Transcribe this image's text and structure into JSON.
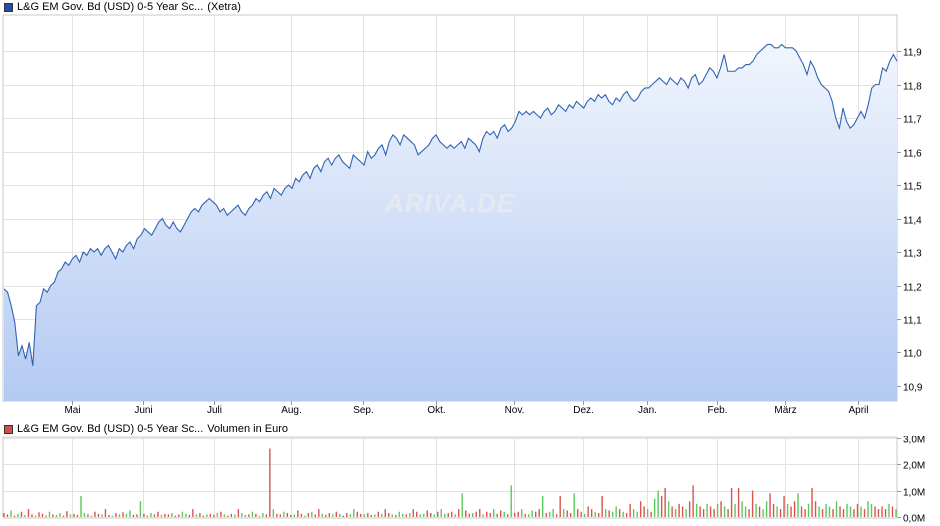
{
  "price_chart": {
    "legend": {
      "instrument": "L&G EM Gov. Bd (USD) 0-5 Year Sc...",
      "venue": "(Xetra)",
      "color": "#1f4fa8"
    },
    "watermark": "ARIVA.DE",
    "line_color": "#2f63b4",
    "fill_top_color": "#f1f5fd",
    "fill_bottom_color": "#b3caf2"
  },
  "volume_chart": {
    "legend": {
      "instrument": "L&G EM Gov. Bd (USD) 0-5 Year Sc...",
      "label": "Volumen in Euro",
      "color": "#d0504d"
    },
    "up_color": "#5cc85c",
    "down_color": "#d9534f"
  },
  "chart_data": [
    {
      "type": "area",
      "title": "L&G EM Gov. Bd (USD) 0-5 Year Sc... (Xetra)",
      "x_tick_labels": [
        "Mai",
        "Juni",
        "Juli",
        "Aug.",
        "Sep.",
        "Okt.",
        "Nov.",
        "Dez.",
        "Jan.",
        "Feb.",
        "März",
        "April"
      ],
      "y_tick_labels": [
        "11,9",
        "11,8",
        "11,7",
        "11,6",
        "11,5",
        "11,4",
        "11,3",
        "11,2",
        "11,1",
        "11,0",
        "10,9"
      ],
      "y_ticks": [
        11.9,
        11.8,
        11.7,
        11.6,
        11.5,
        11.4,
        11.3,
        11.2,
        11.1,
        11.0,
        10.9
      ],
      "ylim": [
        10.855,
        12.005
      ],
      "grid": true,
      "series": [
        {
          "name": "L&G EM Gov. Bd (USD) 0-5 Year Sc...",
          "values": [
            11.19,
            11.18,
            11.14,
            11.09,
            10.99,
            11.02,
            10.98,
            11.03,
            10.96,
            11.14,
            11.15,
            11.19,
            11.18,
            11.2,
            11.21,
            11.24,
            11.25,
            11.27,
            11.26,
            11.28,
            11.29,
            11.27,
            11.3,
            11.29,
            11.31,
            11.3,
            11.31,
            11.29,
            11.31,
            11.32,
            11.3,
            11.28,
            11.31,
            11.3,
            11.32,
            11.33,
            11.31,
            11.34,
            11.35,
            11.37,
            11.36,
            11.35,
            11.37,
            11.39,
            11.4,
            11.38,
            11.37,
            11.39,
            11.37,
            11.36,
            11.38,
            11.4,
            11.42,
            11.43,
            11.42,
            11.44,
            11.45,
            11.46,
            11.45,
            11.44,
            11.42,
            11.43,
            11.41,
            11.42,
            11.43,
            11.44,
            11.42,
            11.41,
            11.43,
            11.44,
            11.46,
            11.45,
            11.47,
            11.48,
            11.46,
            11.49,
            11.48,
            11.47,
            11.49,
            11.5,
            11.49,
            11.52,
            11.51,
            11.53,
            11.54,
            11.52,
            11.55,
            11.56,
            11.54,
            11.57,
            11.58,
            11.56,
            11.58,
            11.59,
            11.57,
            11.56,
            11.55,
            11.59,
            11.58,
            11.57,
            11.56,
            11.6,
            11.58,
            11.59,
            11.61,
            11.62,
            11.59,
            11.63,
            11.65,
            11.64,
            11.62,
            11.65,
            11.64,
            11.63,
            11.62,
            11.59,
            11.6,
            11.61,
            11.62,
            11.64,
            11.65,
            11.63,
            11.62,
            11.61,
            11.62,
            11.61,
            11.62,
            11.63,
            11.61,
            11.64,
            11.63,
            11.62,
            11.6,
            11.64,
            11.66,
            11.65,
            11.66,
            11.64,
            11.67,
            11.68,
            11.66,
            11.67,
            11.69,
            11.72,
            11.71,
            11.72,
            11.71,
            11.72,
            11.71,
            11.7,
            11.72,
            11.73,
            11.71,
            11.72,
            11.74,
            11.73,
            11.72,
            11.74,
            11.73,
            11.75,
            11.74,
            11.73,
            11.75,
            11.76,
            11.75,
            11.77,
            11.76,
            11.77,
            11.75,
            11.74,
            11.76,
            11.75,
            11.77,
            11.78,
            11.76,
            11.75,
            11.76,
            11.78,
            11.79,
            11.79,
            11.8,
            11.81,
            11.82,
            11.81,
            11.8,
            11.82,
            11.81,
            11.8,
            11.82,
            11.81,
            11.79,
            11.82,
            11.83,
            11.8,
            11.81,
            11.83,
            11.85,
            11.84,
            11.82,
            11.85,
            11.89,
            11.84,
            11.84,
            11.84,
            11.85,
            11.85,
            11.86,
            11.86,
            11.87,
            11.89,
            11.9,
            11.91,
            11.92,
            11.92,
            11.91,
            11.91,
            11.92,
            11.91,
            11.91,
            11.91,
            11.9,
            11.88,
            11.86,
            11.83,
            11.87,
            11.85,
            11.82,
            11.8,
            11.79,
            11.78,
            11.75,
            11.7,
            11.67,
            11.73,
            11.69,
            11.67,
            11.68,
            11.7,
            11.72,
            11.7,
            11.74,
            11.79,
            11.8,
            11.8,
            11.85,
            11.84,
            11.87,
            11.89,
            11.87
          ]
        }
      ]
    },
    {
      "type": "bar",
      "title": "L&G EM Gov. Bd (USD) 0-5 Year Sc... Volumen in Euro",
      "y_tick_labels": [
        "3,0M",
        "2,0M",
        "1,0M",
        "0,0M"
      ],
      "y_ticks": [
        3.0,
        2.0,
        1.0,
        0.0
      ],
      "ylim": [
        0,
        3.0
      ],
      "ylabel": "Volumen in Euro",
      "grid": true,
      "series": [
        {
          "name": "Volumen in Euro",
          "unit": "Mio. Euro",
          "values": [
            0.15,
            0.1,
            0.25,
            0.05,
            0.12,
            0.2,
            0.08,
            0.3,
            0.1,
            0.05,
            0.18,
            0.12,
            0.06,
            0.2,
            0.1,
            0.08,
            0.15,
            0.05,
            0.22,
            0.1,
            0.12,
            0.08,
            0.8,
            0.15,
            0.1,
            0.05,
            0.2,
            0.12,
            0.1,
            0.3,
            0.08,
            0.05,
            0.15,
            0.1,
            0.18,
            0.12,
            0.25,
            0.08,
            0.1,
            0.6,
            0.12,
            0.05,
            0.15,
            0.1,
            0.2,
            0.08,
            0.12,
            0.1,
            0.15,
            0.05,
            0.1,
            0.2,
            0.12,
            0.08,
            0.3,
            0.1,
            0.15,
            0.05,
            0.1,
            0.12,
            0.08,
            0.15,
            0.2,
            0.1,
            0.05,
            0.12,
            0.1,
            0.3,
            0.15,
            0.08,
            0.1,
            0.2,
            0.12,
            0.05,
            0.15,
            0.1,
            2.6,
            0.3,
            0.12,
            0.1,
            0.2,
            0.15,
            0.08,
            0.1,
            0.25,
            0.12,
            0.05,
            0.15,
            0.2,
            0.1,
            0.3,
            0.12,
            0.08,
            0.15,
            0.1,
            0.2,
            0.12,
            0.05,
            0.15,
            0.1,
            0.3,
            0.2,
            0.12,
            0.1,
            0.15,
            0.08,
            0.1,
            0.2,
            0.12,
            0.3,
            0.15,
            0.1,
            0.08,
            0.2,
            0.12,
            0.1,
            0.15,
            0.3,
            0.2,
            0.1,
            0.12,
            0.25,
            0.15,
            0.1,
            0.2,
            0.3,
            0.12,
            0.15,
            0.2,
            0.1,
            0.3,
            0.9,
            0.25,
            0.12,
            0.15,
            0.2,
            0.3,
            0.1,
            0.2,
            0.15,
            0.3,
            0.12,
            0.25,
            0.2,
            0.1,
            1.2,
            0.15,
            0.2,
            0.3,
            0.12,
            0.1,
            0.25,
            0.2,
            0.3,
            0.8,
            0.15,
            0.2,
            0.3,
            0.1,
            0.8,
            0.3,
            0.25,
            0.15,
            0.9,
            0.3,
            0.2,
            0.12,
            0.4,
            0.3,
            0.2,
            0.15,
            0.8,
            0.3,
            0.25,
            0.2,
            0.4,
            0.3,
            0.2,
            0.15,
            0.5,
            0.3,
            0.2,
            0.6,
            0.4,
            0.3,
            0.2,
            0.7,
            1.0,
            0.8,
            1.1,
            0.6,
            0.4,
            0.3,
            0.5,
            0.4,
            0.3,
            0.6,
            1.2,
            0.5,
            0.4,
            0.3,
            0.5,
            0.4,
            0.3,
            0.5,
            0.6,
            0.4,
            0.3,
            1.1,
            0.5,
            1.1,
            0.6,
            0.4,
            0.3,
            1.0,
            0.5,
            0.4,
            0.3,
            0.6,
            0.9,
            0.5,
            0.4,
            0.3,
            0.8,
            0.5,
            0.4,
            0.6,
            0.9,
            0.4,
            0.3,
            0.5,
            1.1,
            0.6,
            0.4,
            0.3,
            0.5,
            0.4,
            0.3,
            0.6,
            0.4,
            0.3,
            0.5,
            0.4,
            0.3,
            0.5,
            0.4,
            0.3,
            0.6,
            0.5,
            0.4,
            0.3,
            0.4,
            0.3,
            0.5,
            0.4,
            0.3
          ],
          "direction": "ddudududdudduuduuddudduududduddududuudduddudduddudduuddudduddududduduududuudduddudduddududduddududduudduddududduduududduudduduuddududduddudduddududduduudduduudduddudduddudduduududduudduduuddududduddudduddududduduudduduudduddudduddudduduududduudduduudd"
        }
      ]
    }
  ]
}
